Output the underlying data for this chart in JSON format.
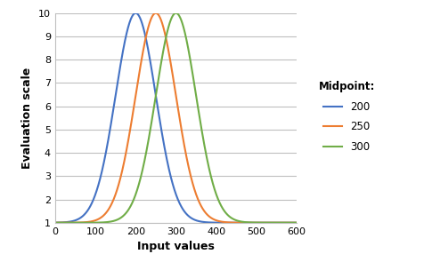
{
  "title": "",
  "xlabel": "Input values",
  "ylabel": "Evaluation scale",
  "legend_title": "Midpoint:",
  "xlim": [
    0,
    600
  ],
  "ylim": [
    1,
    10
  ],
  "xticks": [
    0,
    100,
    200,
    300,
    400,
    500,
    600
  ],
  "yticks": [
    1,
    2,
    3,
    4,
    5,
    6,
    7,
    8,
    9,
    10
  ],
  "curves": [
    {
      "midpoint": 200,
      "color": "#4472C4",
      "label": "200"
    },
    {
      "midpoint": 250,
      "color": "#ED7D31",
      "label": "250"
    },
    {
      "midpoint": 300,
      "color": "#70AD47",
      "label": "300"
    }
  ],
  "amplitude": 10,
  "baseline": 1,
  "sigma": 50,
  "background_color": "#ffffff",
  "grid_color": "#bfbfbf",
  "figsize": [
    4.76,
    2.95
  ],
  "dpi": 100
}
